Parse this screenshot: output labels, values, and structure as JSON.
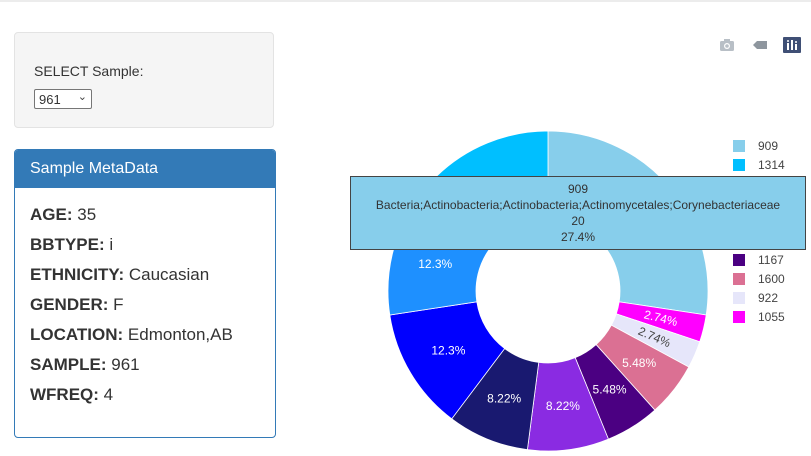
{
  "select": {
    "label": "SELECT Sample:",
    "value": "961"
  },
  "metadata": {
    "title": "Sample MetaData",
    "rows": [
      {
        "key": "AGE:",
        "value": "35"
      },
      {
        "key": "BBTYPE:",
        "value": "i"
      },
      {
        "key": "ETHNICITY:",
        "value": "Caucasian"
      },
      {
        "key": "GENDER:",
        "value": "F"
      },
      {
        "key": "LOCATION:",
        "value": "Edmonton,AB"
      },
      {
        "key": "SAMPLE:",
        "value": "961"
      },
      {
        "key": "WFREQ:",
        "value": "4"
      }
    ]
  },
  "modebar": {
    "icons": [
      "camera-icon",
      "tag-icon",
      "plotly-logo-icon"
    ]
  },
  "hover": {
    "line1": "909",
    "line2": "Bacteria;Actinobacteria;Actinobacteria;Actinomycetales;Corynebacteriaceae",
    "line3": "20",
    "line4": "27.4%"
  },
  "chart_data": {
    "type": "pie",
    "hole": 0.45,
    "legend_position": "right",
    "slices": [
      {
        "label": "909",
        "value": 20,
        "percent_text": "",
        "color": "#87ceeb"
      },
      {
        "label": "1055",
        "value": 2,
        "percent_text": "2.74%",
        "color": "#ff00ff"
      },
      {
        "label": "922",
        "value": 2,
        "percent_text": "2.74%",
        "color": "#e6e6fa"
      },
      {
        "label": "1600",
        "value": 4,
        "percent_text": "5.48%",
        "color": "#db7093"
      },
      {
        "label": "1167",
        "value": 4,
        "percent_text": "5.48%",
        "color": "#4b0082"
      },
      {
        "label": "",
        "value": 6,
        "percent_text": "8.22%",
        "color": "#8a2be2"
      },
      {
        "label": "",
        "value": 6,
        "percent_text": "8.22%",
        "color": "#191970"
      },
      {
        "label": "",
        "value": 9,
        "percent_text": "12.3%",
        "color": "#0000ff"
      },
      {
        "label": "",
        "value": 9,
        "percent_text": "12.3%",
        "color": "#1e90ff"
      },
      {
        "label": "",
        "value": 2,
        "percent_text": "",
        "color": "#40a9f0"
      },
      {
        "label": "1314",
        "value": 9,
        "percent_text": "",
        "color": "#00bfff"
      }
    ],
    "legend": [
      {
        "label": "909",
        "color": "#87ceeb"
      },
      {
        "label": "1314",
        "color": "#00bfff"
      },
      {
        "label": "1167",
        "color": "#4b0082"
      },
      {
        "label": "1600",
        "color": "#db7093"
      },
      {
        "label": "922",
        "color": "#e6e6fa"
      },
      {
        "label": "1055",
        "color": "#ff00ff"
      }
    ]
  }
}
